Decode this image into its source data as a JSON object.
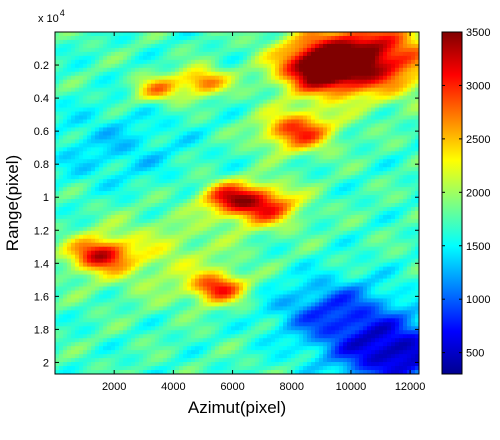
{
  "chart_data": {
    "type": "heatmap",
    "title": "",
    "xlabel": "Azimut(pixel)",
    "ylabel": "Range(pixel)",
    "xlim": [
      0,
      12300
    ],
    "ylim": [
      0,
      20700
    ],
    "y_reversed": true,
    "x_ticks": [
      2000,
      4000,
      6000,
      8000,
      10000,
      12000
    ],
    "x_tick_labels": [
      "2000",
      "4000",
      "6000",
      "8000",
      "10000",
      "12000"
    ],
    "y_ticks": [
      2000,
      4000,
      6000,
      8000,
      10000,
      12000,
      14000,
      16000,
      18000,
      20000
    ],
    "y_tick_labels": [
      "0.2",
      "0.4",
      "0.6",
      "0.8",
      "1",
      "1.2",
      "1.4",
      "1.6",
      "1.8",
      "2"
    ],
    "y_multiplier": "x 10",
    "y_multiplier_exponent": "4",
    "colormap": "jet",
    "colorbar": {
      "range": [
        300,
        3500
      ],
      "ticks": [
        500,
        1000,
        1500,
        2000,
        2500,
        3000,
        3500
      ],
      "tick_labels": [
        "500",
        "1000",
        "1500",
        "2000",
        "2500",
        "3000",
        "3500"
      ]
    },
    "elevation_features": [
      {
        "x": 10500,
        "y": 1500,
        "value": 3400,
        "spread": 2200
      },
      {
        "x": 9000,
        "y": 2200,
        "value": 3300,
        "spread": 1400
      },
      {
        "x": 8200,
        "y": 6000,
        "value": 3000,
        "spread": 1200
      },
      {
        "x": 7000,
        "y": 10500,
        "value": 3100,
        "spread": 1200
      },
      {
        "x": 5800,
        "y": 10000,
        "value": 2800,
        "spread": 900
      },
      {
        "x": 1500,
        "y": 13500,
        "value": 3100,
        "spread": 1000
      },
      {
        "x": 5500,
        "y": 15500,
        "value": 3000,
        "spread": 900
      },
      {
        "x": 5000,
        "y": 3000,
        "value": 2800,
        "spread": 800
      },
      {
        "x": 3500,
        "y": 3500,
        "value": 2600,
        "spread": 800
      },
      {
        "x": 3500,
        "y": 13500,
        "value": 2100,
        "spread": 2500
      },
      {
        "x": 2000,
        "y": 7000,
        "value": 1400,
        "spread": 2500
      },
      {
        "x": 11500,
        "y": 19500,
        "value": 500,
        "spread": 2000
      },
      {
        "x": 9500,
        "y": 17000,
        "value": 900,
        "spread": 2000
      }
    ],
    "base_value": 1700
  }
}
